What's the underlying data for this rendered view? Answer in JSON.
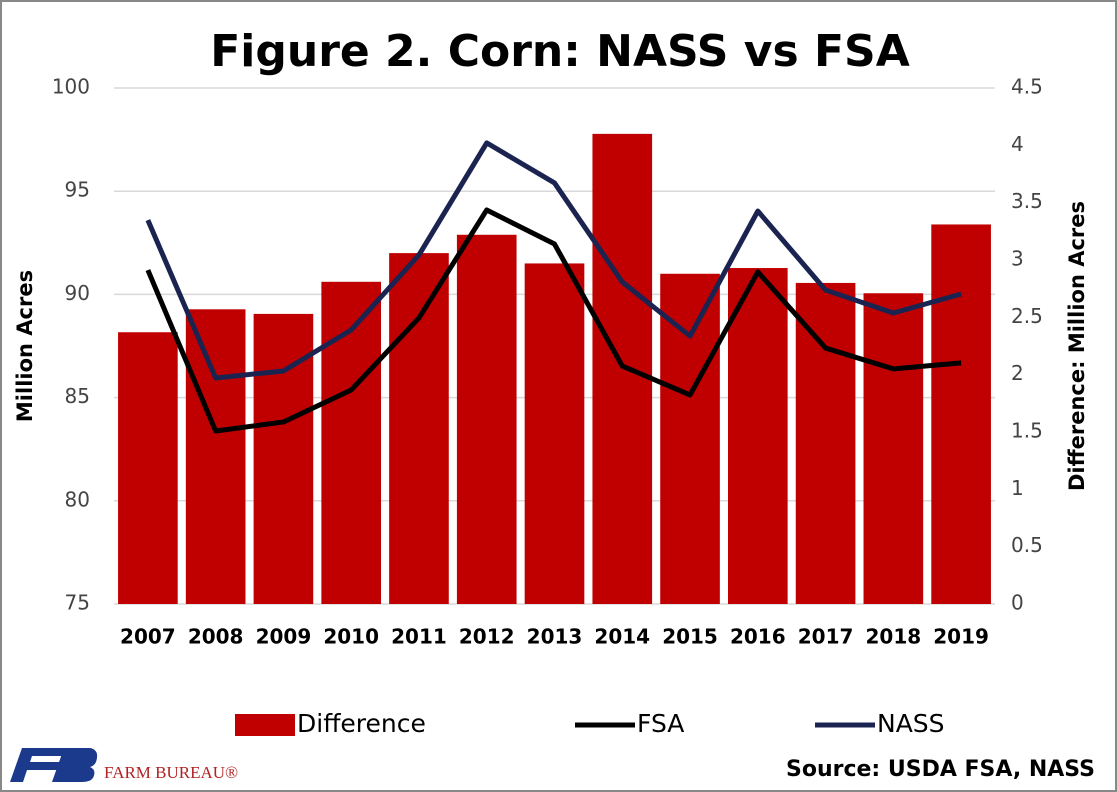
{
  "chart_data": {
    "type": "bar",
    "title": "Figure 2. Corn: NASS vs FSA",
    "y_label": "Million Acres",
    "y2_label": "Difference: Million Acres",
    "categories": [
      "2007",
      "2008",
      "2009",
      "2010",
      "2011",
      "2012",
      "2013",
      "2014",
      "2015",
      "2016",
      "2017",
      "2018",
      "2019"
    ],
    "series": [
      {
        "name": "Difference",
        "type": "bar",
        "axis": "y2",
        "color": "#c00000",
        "values": [
          2.37,
          2.57,
          2.53,
          2.81,
          3.06,
          3.22,
          2.97,
          4.1,
          2.88,
          2.93,
          2.8,
          2.71,
          3.31
        ]
      },
      {
        "name": "FSA",
        "type": "line",
        "color": "#000000",
        "values": [
          91.18,
          83.38,
          83.82,
          85.37,
          88.86,
          94.09,
          92.44,
          86.53,
          85.13,
          91.09,
          87.4,
          86.39,
          86.68
        ]
      },
      {
        "name": "NASS",
        "type": "line",
        "color": "#1b2450",
        "values": [
          93.6,
          85.95,
          86.29,
          88.28,
          91.91,
          97.34,
          95.4,
          90.6,
          87.98,
          94.04,
          90.21,
          89.1,
          90.02
        ]
      }
    ],
    "ylim": [
      75,
      100
    ],
    "yticks": [
      75,
      80,
      85,
      90,
      95,
      100
    ],
    "y2lim": [
      0,
      4.5
    ],
    "y2ticks": [
      0,
      0.5,
      1,
      1.5,
      2,
      2.5,
      3,
      3.5,
      4,
      4.5
    ],
    "grid": true,
    "legend": "bottom"
  },
  "footer": {
    "brand": "FARM BUREAU®",
    "source": "Source: USDA FSA, NASS"
  }
}
